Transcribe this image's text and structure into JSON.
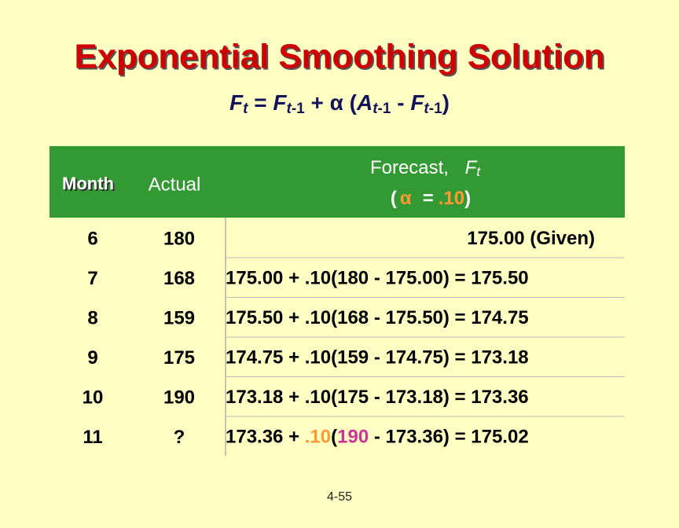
{
  "title": "Exponential Smoothing Solution",
  "formula": [
    "F",
    "t",
    " = ",
    "F",
    "t",
    "-1",
    " +  α (",
    "A",
    "t",
    "-1",
    " - ",
    "F",
    "t",
    "-1",
    ")"
  ],
  "table": {
    "header": {
      "month": "Month",
      "actual": "Actual",
      "forecast": [
        "Forecast,",
        "F",
        "t"
      ],
      "alpha": [
        "(",
        "α",
        "=",
        ".10",
        ")"
      ]
    },
    "rows": [
      {
        "month": "6",
        "actual": "180",
        "forecast": [
          "175.00 (Given)"
        ]
      },
      {
        "month": "7",
        "actual": "168",
        "forecast": [
          "175.00 + .10(180 - 175.00) = 175.50"
        ]
      },
      {
        "month": "8",
        "actual": "159",
        "forecast": [
          "175.50 + .10(168 - 175.50) = 174.75"
        ]
      },
      {
        "month": "9",
        "actual": "175",
        "forecast": [
          "174.75 + .10(159 - 174.75) = 173.18"
        ]
      },
      {
        "month": "10",
        "actual": "190",
        "forecast": [
          "173.18 + .10(175 - 173.18) = 173.36"
        ]
      },
      {
        "month": "11",
        "actual": "?",
        "forecast": [
          "173.36 + ",
          ".10",
          "(",
          "190",
          " - 173.36) = 175.02"
        ]
      }
    ]
  },
  "footer": {
    "page": "4-55"
  }
}
